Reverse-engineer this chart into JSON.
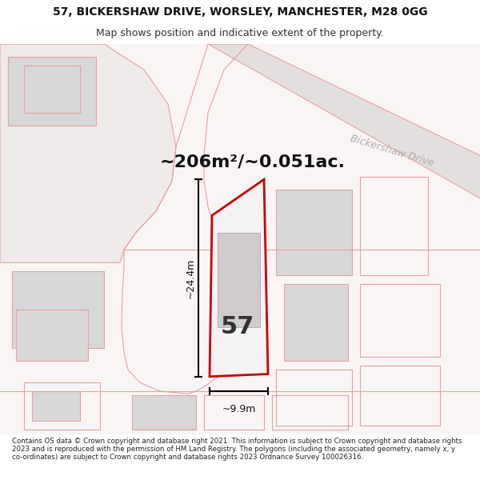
{
  "title_line1": "57, BICKERSHAW DRIVE, WORSLEY, MANCHESTER, M28 0GG",
  "title_line2": "Map shows position and indicative extent of the property.",
  "footer_text": "Contains OS data © Crown copyright and database right 2021. This information is subject to Crown copyright and database rights 2023 and is reproduced with the permission of HM Land Registry. The polygons (including the associated geometry, namely x, y co-ordinates) are subject to Crown copyright and database rights 2023 Ordnance Survey 100026316.",
  "area_label": "~206m²/~0.051ac.",
  "number_label": "57",
  "width_label": "~9.9m",
  "height_label": "~24.4m",
  "road_label": "Bickershaw Drive",
  "background_color": "#ffffff",
  "map_bg": "#faf5f5",
  "plot_color": "#cc0000",
  "outline_color": "#e8a0a0",
  "gray_fill": "#d8d8d8",
  "road_fill": "#e8e4e4",
  "title_fontsize": 10,
  "subtitle_fontsize": 9,
  "area_fontsize": 16,
  "number_fontsize": 22,
  "dim_fontsize": 9,
  "footer_fontsize": 6.2
}
